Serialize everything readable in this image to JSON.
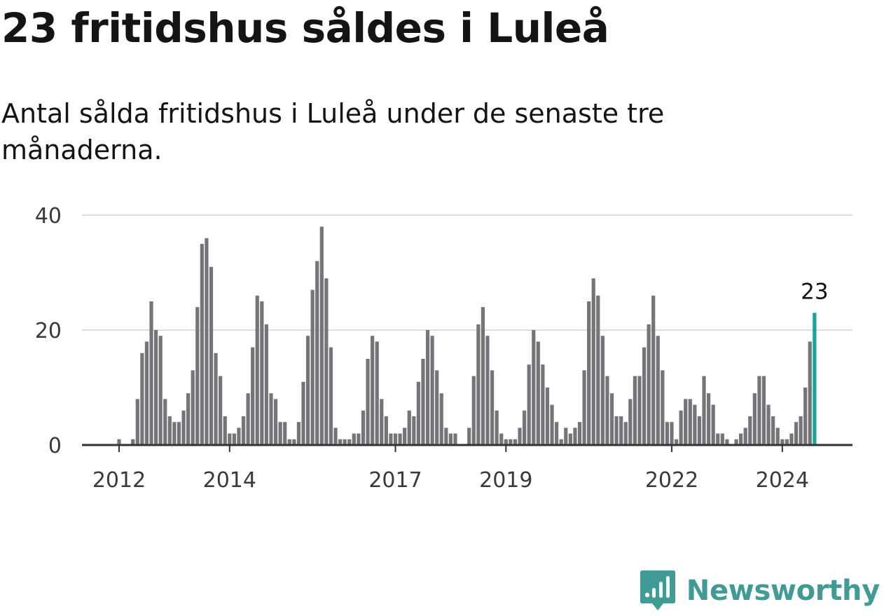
{
  "title": "23 fritidshus såldes i Luleå",
  "subtitle": "Antal sålda fritidshus i Luleå under de senaste tre månaderna.",
  "brand": {
    "name": "Newsworthy"
  },
  "colors": {
    "bar": "#757478",
    "highlight": "#17a59a",
    "grid": "#dddddd",
    "axis": "#333333"
  },
  "chart_data": {
    "type": "bar",
    "title": "23 fritidshus såldes i Luleå",
    "subtitle": "Antal sålda fritidshus i Luleå under de senaste tre månaderna.",
    "xlabel": "",
    "ylabel": "",
    "ylim": [
      0,
      40
    ],
    "yticks": [
      0,
      20,
      40
    ],
    "grid": true,
    "start": {
      "year": 2012,
      "month": 1
    },
    "xtick_labels": [
      {
        "label": "2012",
        "index": 0
      },
      {
        "label": "2014",
        "index": 24
      },
      {
        "label": "2017",
        "index": 60
      },
      {
        "label": "2019",
        "index": 84
      },
      {
        "label": "2022",
        "index": 120
      },
      {
        "label": "2024",
        "index": 144
      }
    ],
    "last_label": "23",
    "values": [
      1,
      0,
      0,
      1,
      8,
      16,
      18,
      25,
      20,
      19,
      8,
      5,
      4,
      4,
      6,
      9,
      13,
      24,
      35,
      36,
      31,
      16,
      12,
      5,
      2,
      2,
      3,
      5,
      9,
      17,
      26,
      25,
      21,
      9,
      8,
      4,
      4,
      1,
      1,
      4,
      11,
      19,
      27,
      32,
      38,
      29,
      17,
      3,
      1,
      1,
      1,
      2,
      2,
      6,
      15,
      19,
      18,
      8,
      5,
      2,
      2,
      2,
      3,
      6,
      5,
      11,
      15,
      20,
      19,
      13,
      9,
      3,
      2,
      2,
      0,
      0,
      3,
      12,
      21,
      24,
      19,
      13,
      6,
      2,
      1,
      1,
      1,
      3,
      6,
      14,
      20,
      18,
      14,
      10,
      7,
      4,
      1,
      3,
      2,
      3,
      4,
      13,
      25,
      29,
      26,
      19,
      12,
      9,
      5,
      5,
      4,
      8,
      12,
      12,
      17,
      21,
      26,
      19,
      13,
      4,
      4,
      1,
      6,
      8,
      8,
      7,
      5,
      12,
      9,
      7,
      2,
      2,
      1,
      0,
      1,
      2,
      3,
      5,
      9,
      12,
      12,
      7,
      5,
      3,
      1,
      1,
      2,
      4,
      5,
      10,
      18,
      23
    ]
  }
}
